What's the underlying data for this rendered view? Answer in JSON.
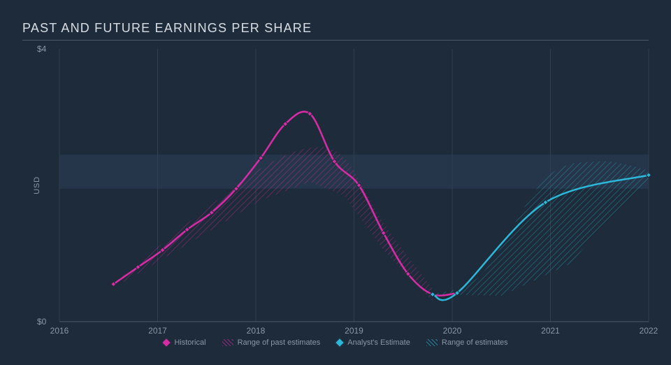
{
  "title": "PAST AND FUTURE EARNINGS PER SHARE",
  "y_axis": {
    "label": "USD",
    "ticks": [
      {
        "v": 0,
        "label": "$0"
      },
      {
        "v": 4,
        "label": "$4"
      }
    ],
    "min": 0,
    "max": 4
  },
  "x_axis": {
    "ticks": [
      2016,
      2017,
      2018,
      2019,
      2020,
      2021,
      2022
    ],
    "min": 2016,
    "max": 2022
  },
  "colors": {
    "background": "#1d2b3a",
    "grid": "#2f3f50",
    "band": "#26364a",
    "axis": "#4a5a6b",
    "text": "#8a97a7",
    "title": "#d8dde3",
    "historical": "#d82ca6",
    "historical_range": "#d82ca6",
    "estimate": "#2cb8d8",
    "estimate_range": "#2cb8d8"
  },
  "series": {
    "historical": {
      "label": "Historical",
      "line_width": 2.5,
      "marker": "diamond",
      "marker_size": 7,
      "points": [
        {
          "x": 2016.55,
          "y": 0.55
        },
        {
          "x": 2016.8,
          "y": 0.8
        },
        {
          "x": 2017.05,
          "y": 1.05
        },
        {
          "x": 2017.3,
          "y": 1.35
        },
        {
          "x": 2017.55,
          "y": 1.6
        },
        {
          "x": 2017.8,
          "y": 1.95
        },
        {
          "x": 2018.05,
          "y": 2.4
        },
        {
          "x": 2018.3,
          "y": 2.9
        },
        {
          "x": 2018.55,
          "y": 3.05
        },
        {
          "x": 2018.8,
          "y": 2.35
        },
        {
          "x": 2019.05,
          "y": 2.0
        },
        {
          "x": 2019.3,
          "y": 1.3
        },
        {
          "x": 2019.55,
          "y": 0.7
        },
        {
          "x": 2019.8,
          "y": 0.4
        },
        {
          "x": 2020.05,
          "y": 0.42
        }
      ],
      "range_upper": [
        {
          "x": 2016.55,
          "y": 0.55
        },
        {
          "x": 2017.05,
          "y": 1.15
        },
        {
          "x": 2017.55,
          "y": 1.72
        },
        {
          "x": 2018.05,
          "y": 2.25
        },
        {
          "x": 2018.55,
          "y": 2.55
        },
        {
          "x": 2018.9,
          "y": 2.4
        },
        {
          "x": 2019.3,
          "y": 1.45
        },
        {
          "x": 2019.8,
          "y": 0.48
        }
      ],
      "range_lower": [
        {
          "x": 2016.55,
          "y": 0.5
        },
        {
          "x": 2017.05,
          "y": 0.92
        },
        {
          "x": 2017.55,
          "y": 1.35
        },
        {
          "x": 2018.05,
          "y": 1.78
        },
        {
          "x": 2018.55,
          "y": 2.05
        },
        {
          "x": 2018.9,
          "y": 1.85
        },
        {
          "x": 2019.3,
          "y": 1.05
        },
        {
          "x": 2019.8,
          "y": 0.3
        }
      ]
    },
    "estimate": {
      "label": "Analyst's Estimate",
      "line_width": 2.5,
      "marker": "diamond",
      "marker_size": 7,
      "points": [
        {
          "x": 2019.8,
          "y": 0.4
        },
        {
          "x": 2020.05,
          "y": 0.42
        },
        {
          "x": 2020.95,
          "y": 1.75
        },
        {
          "x": 2022.0,
          "y": 2.15
        }
      ],
      "range_upper": [
        {
          "x": 2019.8,
          "y": 0.4
        },
        {
          "x": 2020.3,
          "y": 0.7
        },
        {
          "x": 2020.95,
          "y": 2.1
        },
        {
          "x": 2021.5,
          "y": 2.35
        },
        {
          "x": 2022.0,
          "y": 2.22
        }
      ],
      "range_lower": [
        {
          "x": 2019.8,
          "y": 0.4
        },
        {
          "x": 2020.5,
          "y": 0.38
        },
        {
          "x": 2021.2,
          "y": 0.85
        },
        {
          "x": 2021.6,
          "y": 1.5
        },
        {
          "x": 2022.0,
          "y": 2.05
        }
      ]
    }
  },
  "legend": {
    "historical": "Historical",
    "historical_range": "Range of past estimates",
    "estimate": "Analyst's Estimate",
    "estimate_range": "Range of estimates"
  },
  "plot": {
    "inner_band_y": [
      1.95,
      2.45
    ]
  }
}
